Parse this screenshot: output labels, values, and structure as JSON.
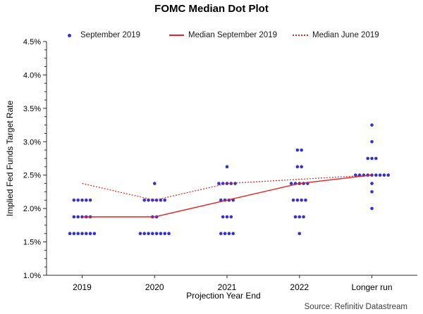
{
  "title": "FOMC Median Dot Plot",
  "legend": {
    "items": [
      {
        "label": "September 2019",
        "marker": "blue-dot"
      },
      {
        "label": "Median September 2019",
        "marker": "red-solid-line"
      },
      {
        "label": "Median June 2019",
        "marker": "red-dotted-line"
      }
    ]
  },
  "source_note": "Source: Refinitiv Datastream",
  "colors": {
    "dot_blue": "#3232cf",
    "median_red": "#e32221",
    "axis": "#2b2b2b",
    "text": "#000000"
  },
  "chart_data": {
    "type": "scatter",
    "title": "FOMC Median Dot Plot",
    "xlabel": "Projection Year End",
    "ylabel": "Implied Fed Funds Target Rate",
    "categories": [
      "2019",
      "2020",
      "2021",
      "2022",
      "Longer run"
    ],
    "ylim": [
      1.0,
      4.5
    ],
    "y_major_tick_step": 0.5,
    "y_minor_tick_step": 0.125,
    "y_tick_labels": [
      "1.0%",
      "1.5%",
      "2.0%",
      "2.5%",
      "3.0%",
      "3.5%",
      "4.0%",
      "4.5%"
    ],
    "grid": false,
    "legend_position": "top",
    "dot_distributions": [
      {
        "category": "2019",
        "levels": [
          {
            "rate": 1.625,
            "count": 7
          },
          {
            "rate": 1.875,
            "count": 5
          },
          {
            "rate": 2.125,
            "count": 5
          }
        ]
      },
      {
        "category": "2020",
        "levels": [
          {
            "rate": 1.625,
            "count": 8
          },
          {
            "rate": 1.875,
            "count": 2
          },
          {
            "rate": 2.125,
            "count": 6
          },
          {
            "rate": 2.375,
            "count": 1
          }
        ]
      },
      {
        "category": "2021",
        "levels": [
          {
            "rate": 1.625,
            "count": 4
          },
          {
            "rate": 1.875,
            "count": 3
          },
          {
            "rate": 2.125,
            "count": 4
          },
          {
            "rate": 2.375,
            "count": 5
          },
          {
            "rate": 2.625,
            "count": 1
          }
        ]
      },
      {
        "category": "2022",
        "levels": [
          {
            "rate": 1.625,
            "count": 1
          },
          {
            "rate": 1.875,
            "count": 3
          },
          {
            "rate": 2.125,
            "count": 4
          },
          {
            "rate": 2.375,
            "count": 5
          },
          {
            "rate": 2.625,
            "count": 2
          },
          {
            "rate": 2.875,
            "count": 2
          }
        ]
      },
      {
        "category": "Longer run",
        "levels": [
          {
            "rate": 2.0,
            "count": 1
          },
          {
            "rate": 2.25,
            "count": 1
          },
          {
            "rate": 2.375,
            "count": 1
          },
          {
            "rate": 2.5,
            "count": 9
          },
          {
            "rate": 2.75,
            "count": 3
          },
          {
            "rate": 3.0,
            "count": 1
          },
          {
            "rate": 3.25,
            "count": 1
          }
        ]
      }
    ],
    "series": [
      {
        "name": "September 2019",
        "type": "dots"
      },
      {
        "name": "Median September 2019",
        "type": "line",
        "style": "solid",
        "values": [
          1.875,
          1.875,
          2.125,
          2.375,
          2.5
        ]
      },
      {
        "name": "Median June 2019",
        "type": "line",
        "style": "dotted",
        "values": [
          2.375,
          2.125,
          2.375,
          null,
          2.5
        ]
      }
    ]
  }
}
